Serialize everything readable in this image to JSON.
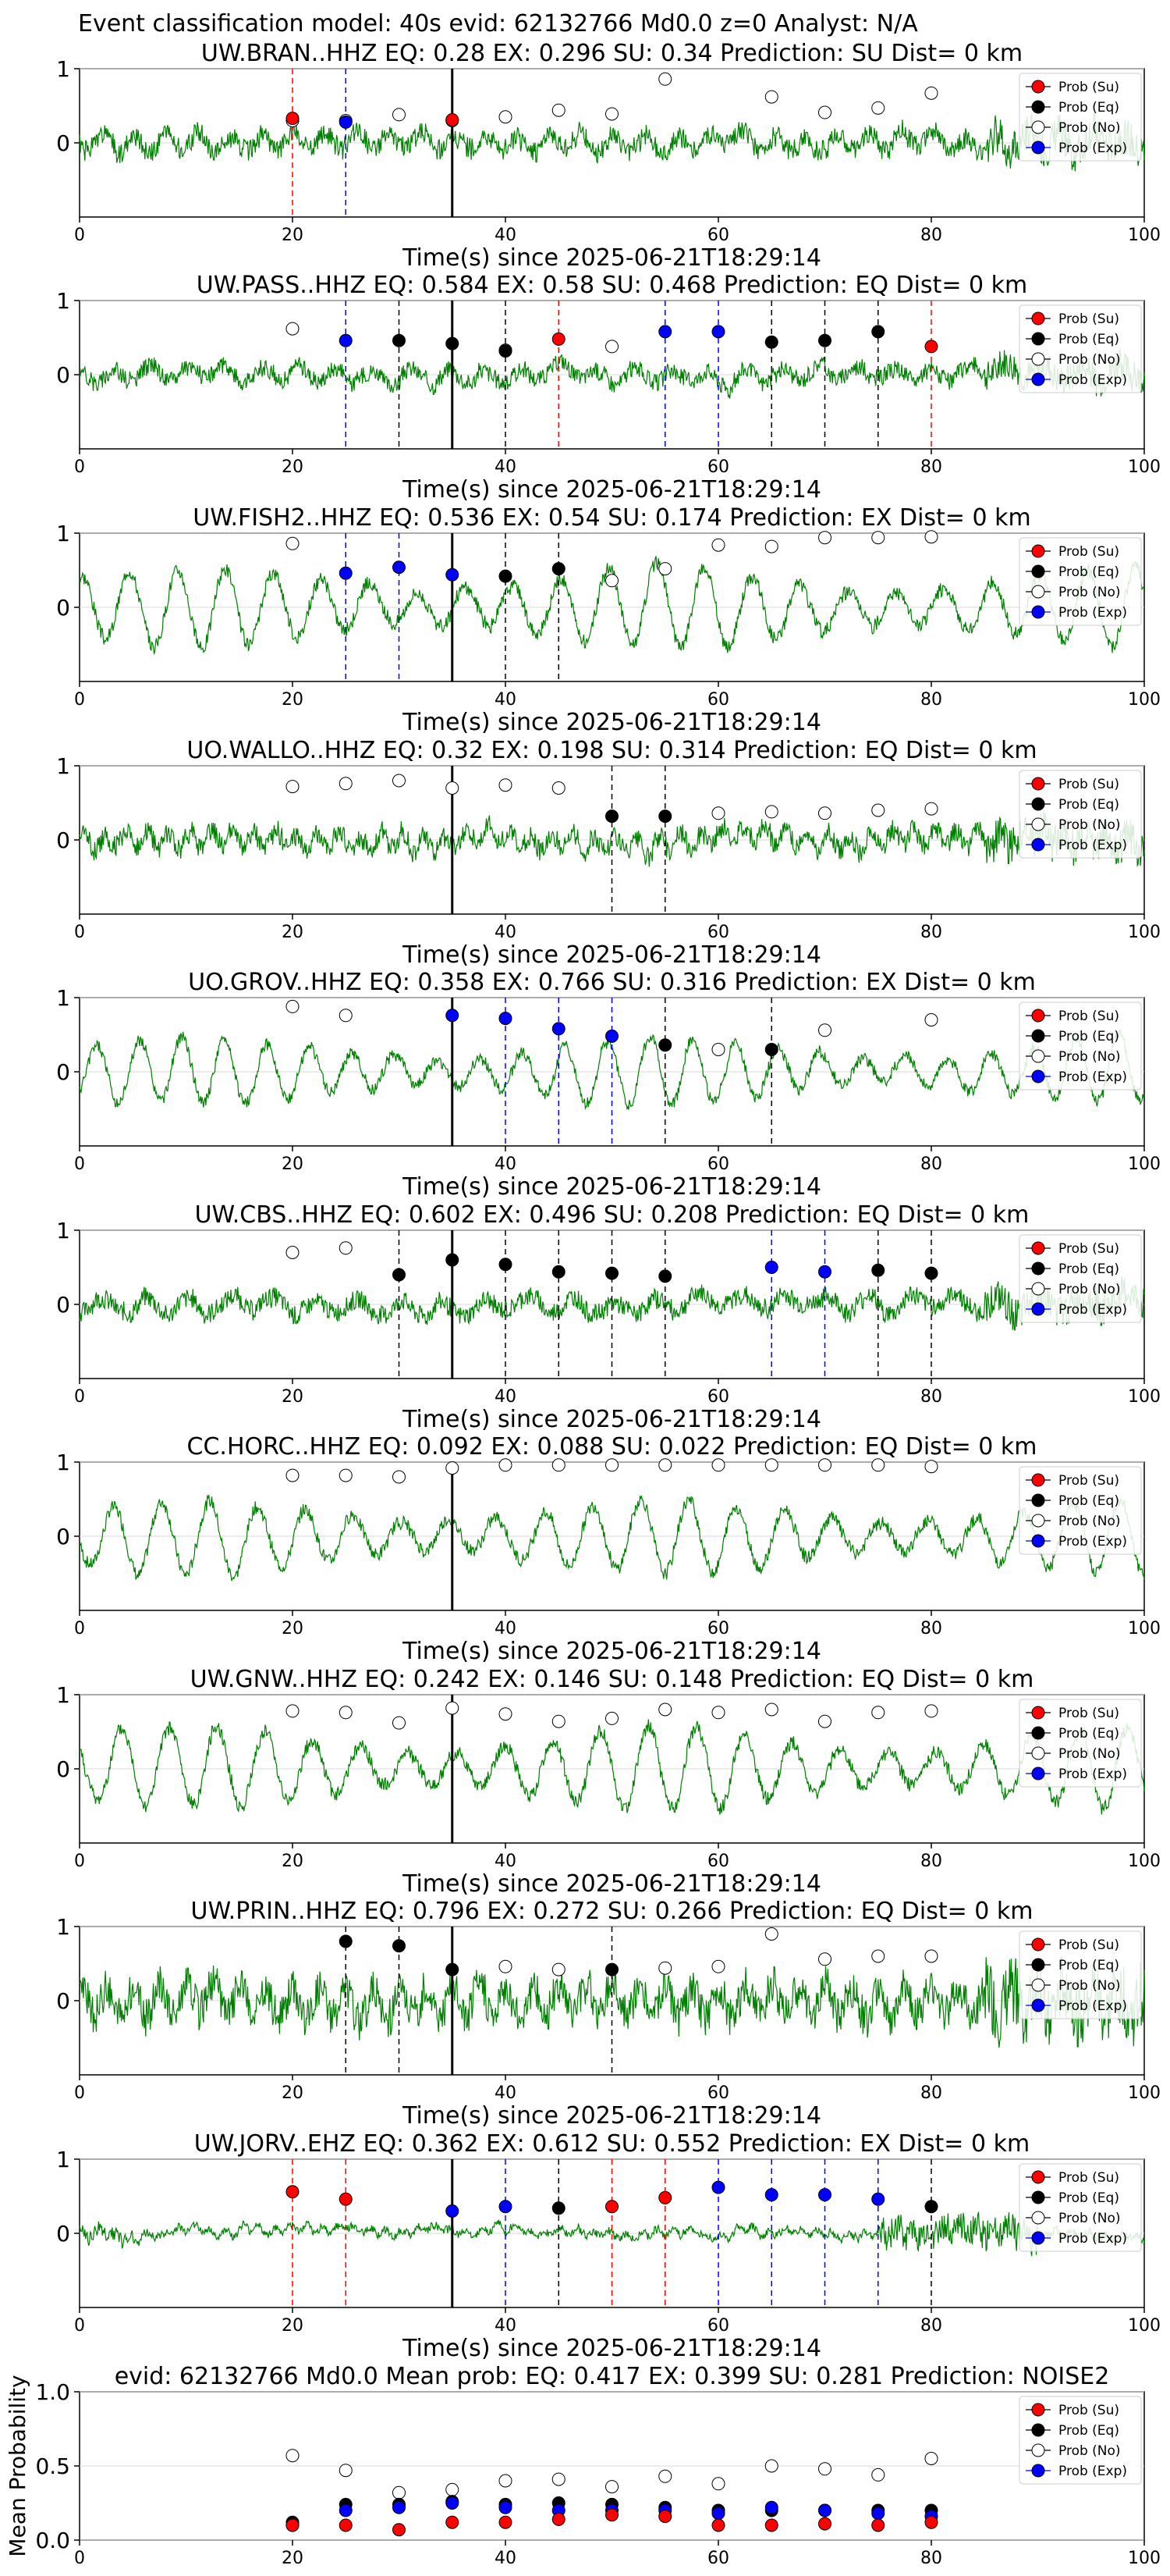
{
  "figure_title": "Event classification model: 40s evid: 62132766 Md0.0 z=0 Analyst: N/A",
  "colors": {
    "waveform": "#008000",
    "su": "#ff0000",
    "eq": "#000000",
    "no": "#ffffff",
    "exp": "#0000ff",
    "origin_line": "#000000"
  },
  "legend": [
    "Prob (Su)",
    "Prob (Eq)",
    "Prob (No)",
    "Prob (Exp)"
  ],
  "chart_data": [
    {
      "type": "line",
      "title": "UW.BRAN..HHZ   EQ: 0.28  EX: 0.296  SU: 0.34   Prediction: SU    Dist= 0 km",
      "xlabel": "Time(s) since 2025-06-21T18:29:14",
      "xlim": [
        0,
        100
      ],
      "ylim": [
        -1,
        1
      ],
      "xticks": [
        0,
        20,
        40,
        60,
        80,
        100
      ],
      "yticks": [
        0,
        1
      ],
      "origin_time": 35,
      "waveform": {
        "amp": 0.22,
        "period": 3,
        "style": "noise",
        "seed": 1
      },
      "windows_x": [
        20,
        25,
        30,
        35,
        40,
        45,
        50,
        55,
        60,
        65,
        70,
        75,
        80
      ],
      "prob_no": [
        0.3,
        0.3,
        0.38,
        0.3,
        0.35,
        0.44,
        0.39,
        0.86,
        null,
        0.62,
        0.41,
        0.47,
        0.67
      ],
      "max_class": [
        "su",
        "exp",
        null,
        "su",
        null,
        null,
        null,
        null,
        null,
        null,
        null,
        null,
        null
      ],
      "max_value": [
        0.33,
        0.28,
        null,
        0.31,
        null,
        null,
        null,
        null,
        null,
        null,
        null,
        null,
        null
      ]
    },
    {
      "type": "line",
      "title": "UW.PASS..HHZ   EQ: 0.584  EX: 0.58  SU: 0.468   Prediction: EQ    Dist= 0 km",
      "xlabel": "Time(s) since 2025-06-21T18:29:14",
      "xlim": [
        0,
        100
      ],
      "ylim": [
        -1,
        1
      ],
      "xticks": [
        0,
        20,
        40,
        60,
        80,
        100
      ],
      "yticks": [
        0,
        1
      ],
      "origin_time": 35,
      "waveform": {
        "amp": 0.18,
        "period": 3.5,
        "style": "noise",
        "seed": 2
      },
      "windows_x": [
        20,
        25,
        30,
        35,
        40,
        45,
        50,
        55,
        60,
        65,
        70,
        75,
        80
      ],
      "prob_no": [
        0.62,
        null,
        null,
        null,
        0.33,
        null,
        0.38,
        null,
        null,
        null,
        null,
        null,
        null
      ],
      "max_class": [
        null,
        "exp",
        "eq",
        "eq",
        "eq",
        "su",
        null,
        "exp",
        "exp",
        "eq",
        "eq",
        "eq",
        "su"
      ],
      "max_value": [
        null,
        0.46,
        0.46,
        0.42,
        0.32,
        0.48,
        null,
        0.58,
        0.58,
        0.44,
        0.46,
        0.58,
        0.38
      ]
    },
    {
      "type": "line",
      "title": "UW.FISH2..HHZ   EQ: 0.536  EX: 0.54  SU: 0.174   Prediction: EX    Dist= 0 km",
      "xlabel": "Time(s) since 2025-06-21T18:29:14",
      "xlim": [
        0,
        100
      ],
      "ylim": [
        -1,
        1
      ],
      "xticks": [
        0,
        20,
        40,
        60,
        80,
        100
      ],
      "yticks": [
        0,
        1
      ],
      "origin_time": 35,
      "waveform": {
        "amp": 0.55,
        "period": 4.5,
        "style": "swell",
        "seed": 3
      },
      "windows_x": [
        20,
        25,
        30,
        35,
        40,
        45,
        50,
        55,
        60,
        65,
        70,
        75,
        80
      ],
      "prob_no": [
        0.86,
        null,
        null,
        null,
        null,
        null,
        0.36,
        0.52,
        0.84,
        0.82,
        0.94,
        0.94,
        0.95
      ],
      "max_class": [
        null,
        "exp",
        "exp",
        "exp",
        "eq",
        "eq",
        null,
        null,
        null,
        null,
        null,
        null,
        null
      ],
      "max_value": [
        null,
        0.46,
        0.54,
        0.44,
        0.42,
        0.52,
        null,
        null,
        null,
        null,
        null,
        null,
        null
      ]
    },
    {
      "type": "line",
      "title": "UO.WALLO..HHZ   EQ: 0.32  EX: 0.198  SU: 0.314   Prediction: EQ    Dist= 0 km",
      "xlabel": "Time(s) since 2025-06-21T18:29:14",
      "xlim": [
        0,
        100
      ],
      "ylim": [
        -1,
        1
      ],
      "xticks": [
        0,
        20,
        40,
        60,
        80,
        100
      ],
      "yticks": [
        0,
        1
      ],
      "origin_time": 35,
      "waveform": {
        "amp": 0.22,
        "period": 2,
        "style": "noise",
        "seed": 4
      },
      "windows_x": [
        20,
        25,
        30,
        35,
        40,
        45,
        50,
        55,
        60,
        65,
        70,
        75,
        80
      ],
      "prob_no": [
        0.72,
        0.76,
        0.8,
        0.7,
        0.74,
        0.7,
        null,
        null,
        0.36,
        0.38,
        0.36,
        0.4,
        0.42
      ],
      "max_class": [
        null,
        null,
        null,
        null,
        null,
        null,
        "eq",
        "eq",
        null,
        null,
        null,
        null,
        null
      ],
      "max_value": [
        null,
        null,
        null,
        null,
        null,
        null,
        0.32,
        0.32,
        null,
        null,
        null,
        null,
        null
      ]
    },
    {
      "type": "line",
      "title": "UO.GROV..HHZ   EQ: 0.358  EX: 0.766  SU: 0.316   Prediction: EX    Dist= 0 km",
      "xlabel": "Time(s) since 2025-06-21T18:29:14",
      "xlim": [
        0,
        100
      ],
      "ylim": [
        -1,
        1
      ],
      "xticks": [
        0,
        20,
        40,
        60,
        80,
        100
      ],
      "yticks": [
        0,
        1
      ],
      "origin_time": 35,
      "waveform": {
        "amp": 0.45,
        "period": 4,
        "style": "swell",
        "seed": 5
      },
      "windows_x": [
        20,
        25,
        30,
        35,
        40,
        45,
        50,
        55,
        60,
        65,
        70,
        75,
        80
      ],
      "prob_no": [
        0.88,
        0.76,
        null,
        null,
        null,
        null,
        null,
        null,
        0.3,
        null,
        0.56,
        null,
        0.7
      ],
      "max_class": [
        null,
        null,
        null,
        "exp",
        "exp",
        "exp",
        "exp",
        "eq",
        null,
        "eq",
        null,
        null,
        null
      ],
      "max_value": [
        null,
        null,
        null,
        0.76,
        0.72,
        0.58,
        0.48,
        0.36,
        null,
        0.3,
        null,
        null,
        null
      ]
    },
    {
      "type": "line",
      "title": "UW.CBS..HHZ   EQ: 0.602  EX: 0.496  SU: 0.208   Prediction: EQ    Dist= 0 km",
      "xlabel": "Time(s) since 2025-06-21T18:29:14",
      "xlim": [
        0,
        100
      ],
      "ylim": [
        -1,
        1
      ],
      "xticks": [
        0,
        20,
        40,
        60,
        80,
        100
      ],
      "yticks": [
        0,
        1
      ],
      "origin_time": 35,
      "waveform": {
        "amp": 0.2,
        "period": 4,
        "style": "noise",
        "seed": 6
      },
      "windows_x": [
        20,
        25,
        30,
        35,
        40,
        45,
        50,
        55,
        60,
        65,
        70,
        75,
        80
      ],
      "prob_no": [
        0.7,
        0.76,
        null,
        null,
        null,
        null,
        null,
        null,
        null,
        null,
        null,
        null,
        null
      ],
      "max_class": [
        null,
        null,
        "eq",
        "eq",
        "eq",
        "eq",
        "eq",
        "eq",
        null,
        "exp",
        "exp",
        "eq",
        "eq"
      ],
      "max_value": [
        null,
        null,
        0.4,
        0.6,
        0.54,
        0.44,
        0.42,
        0.38,
        null,
        0.5,
        0.44,
        0.46,
        0.42
      ]
    },
    {
      "type": "line",
      "title": "CC.HORC..HHZ   EQ: 0.092  EX: 0.088  SU: 0.022   Prediction: EQ    Dist= 0 km",
      "xlabel": "Time(s) since 2025-06-21T18:29:14",
      "xlim": [
        0,
        100
      ],
      "ylim": [
        -1,
        1
      ],
      "xticks": [
        0,
        20,
        40,
        60,
        80,
        100
      ],
      "yticks": [
        0,
        1
      ],
      "origin_time": 35,
      "waveform": {
        "amp": 0.5,
        "period": 4.5,
        "style": "swell",
        "seed": 7
      },
      "windows_x": [
        20,
        25,
        30,
        35,
        40,
        45,
        50,
        55,
        60,
        65,
        70,
        75,
        80
      ],
      "prob_no": [
        0.82,
        0.82,
        0.8,
        0.92,
        0.96,
        0.96,
        0.96,
        0.96,
        0.96,
        0.96,
        0.96,
        0.96,
        0.94
      ],
      "max_class": [
        null,
        null,
        null,
        null,
        null,
        null,
        null,
        null,
        null,
        null,
        null,
        null,
        null
      ],
      "max_value": [
        null,
        null,
        null,
        null,
        null,
        null,
        null,
        null,
        null,
        null,
        null,
        null,
        null
      ]
    },
    {
      "type": "line",
      "title": "UW.GNW..HHZ   EQ: 0.242  EX: 0.146  SU: 0.148   Prediction: EQ    Dist= 0 km",
      "xlabel": "Time(s) since 2025-06-21T18:29:14",
      "xlim": [
        0,
        100
      ],
      "ylim": [
        -1,
        1
      ],
      "xticks": [
        0,
        20,
        40,
        60,
        80,
        100
      ],
      "yticks": [
        0,
        1
      ],
      "origin_time": 35,
      "waveform": {
        "amp": 0.55,
        "period": 4.5,
        "style": "swell",
        "seed": 8
      },
      "windows_x": [
        20,
        25,
        30,
        35,
        40,
        45,
        50,
        55,
        60,
        65,
        70,
        75,
        80
      ],
      "prob_no": [
        0.78,
        0.76,
        0.62,
        0.82,
        0.74,
        0.64,
        0.68,
        0.8,
        0.76,
        0.8,
        0.64,
        0.76,
        0.78
      ],
      "max_class": [
        null,
        null,
        null,
        null,
        null,
        null,
        null,
        null,
        null,
        null,
        null,
        null,
        null
      ],
      "max_value": [
        null,
        null,
        null,
        null,
        null,
        null,
        null,
        null,
        null,
        null,
        null,
        null,
        null
      ]
    },
    {
      "type": "line",
      "title": "UW.PRIN..HHZ   EQ: 0.796  EX: 0.272  SU: 0.266   Prediction: EQ    Dist= 0 km",
      "xlabel": "Time(s) since 2025-06-21T18:29:14",
      "xlim": [
        0,
        100
      ],
      "ylim": [
        -1,
        1
      ],
      "xticks": [
        0,
        20,
        40,
        60,
        80,
        100
      ],
      "yticks": [
        0,
        1
      ],
      "origin_time": 35,
      "waveform": {
        "amp": 0.4,
        "period": 2.5,
        "style": "noise",
        "seed": 9
      },
      "windows_x": [
        20,
        25,
        30,
        35,
        40,
        45,
        50,
        55,
        60,
        65,
        70,
        75,
        80
      ],
      "prob_no": [
        null,
        null,
        null,
        null,
        0.46,
        0.42,
        null,
        0.44,
        0.46,
        0.9,
        0.56,
        0.6,
        0.6
      ],
      "max_class": [
        null,
        "eq",
        "eq",
        "eq",
        null,
        null,
        "eq",
        null,
        null,
        null,
        null,
        null,
        null
      ],
      "max_value": [
        null,
        0.8,
        0.74,
        0.42,
        null,
        null,
        0.42,
        null,
        null,
        null,
        null,
        null,
        null
      ]
    },
    {
      "type": "line",
      "title": "UW.JORV..EHZ   EQ: 0.362  EX: 0.612  SU: 0.552   Prediction: EX    Dist= 0 km",
      "xlabel": "Time(s) since 2025-06-21T18:29:14",
      "xlim": [
        0,
        100
      ],
      "ylim": [
        -1,
        1
      ],
      "xticks": [
        0,
        20,
        40,
        60,
        80,
        100
      ],
      "yticks": [
        0,
        1
      ],
      "origin_time": 35,
      "waveform": {
        "amp": 0.08,
        "period": 1.5,
        "style": "burst",
        "seed": 10
      },
      "windows_x": [
        20,
        25,
        30,
        35,
        40,
        45,
        50,
        55,
        60,
        65,
        70,
        75,
        80
      ],
      "prob_no": [
        null,
        null,
        null,
        null,
        null,
        null,
        null,
        null,
        null,
        null,
        null,
        null,
        null
      ],
      "max_class": [
        "su",
        "su",
        null,
        "exp",
        "exp",
        "eq",
        "su",
        "su",
        "exp",
        "exp",
        "exp",
        "exp",
        "eq"
      ],
      "max_value": [
        0.56,
        0.46,
        null,
        0.3,
        0.36,
        0.34,
        0.36,
        0.48,
        0.62,
        0.52,
        0.52,
        0.46,
        0.36
      ]
    },
    {
      "type": "scatter",
      "title": "evid: 62132766  Md0.0    Mean prob:    EQ: 0.417  EX: 0.399  SU: 0.281    Prediction: NOISE2",
      "ylabel": "Mean Probability",
      "xlim": [
        0,
        100
      ],
      "ylim": [
        0,
        1
      ],
      "xticks": [
        0,
        20,
        40,
        60,
        80,
        100
      ],
      "yticks": [
        0.0,
        0.5,
        1.0
      ],
      "ytick_labels": [
        "0.0",
        "0.5",
        "1.0"
      ],
      "x": [
        20,
        25,
        30,
        35,
        40,
        45,
        50,
        55,
        60,
        65,
        70,
        75,
        80
      ],
      "series": [
        {
          "name": "Prob (No)",
          "values": [
            0.57,
            0.47,
            0.32,
            0.34,
            0.4,
            0.41,
            0.36,
            0.43,
            0.38,
            0.5,
            0.48,
            0.44,
            0.55
          ]
        },
        {
          "name": "Prob (Eq)",
          "values": [
            0.12,
            0.24,
            0.24,
            0.26,
            0.24,
            0.25,
            0.24,
            0.22,
            0.2,
            0.2,
            0.2,
            0.2,
            0.2
          ]
        },
        {
          "name": "Prob (Exp)",
          "values": [
            0.1,
            0.2,
            0.22,
            0.25,
            0.22,
            0.2,
            0.2,
            0.2,
            0.18,
            0.22,
            0.2,
            0.18,
            0.16
          ]
        },
        {
          "name": "Prob (Su)",
          "values": [
            0.1,
            0.1,
            0.07,
            0.12,
            0.12,
            0.14,
            0.17,
            0.16,
            0.1,
            0.1,
            0.11,
            0.1,
            0.12
          ]
        }
      ]
    }
  ]
}
